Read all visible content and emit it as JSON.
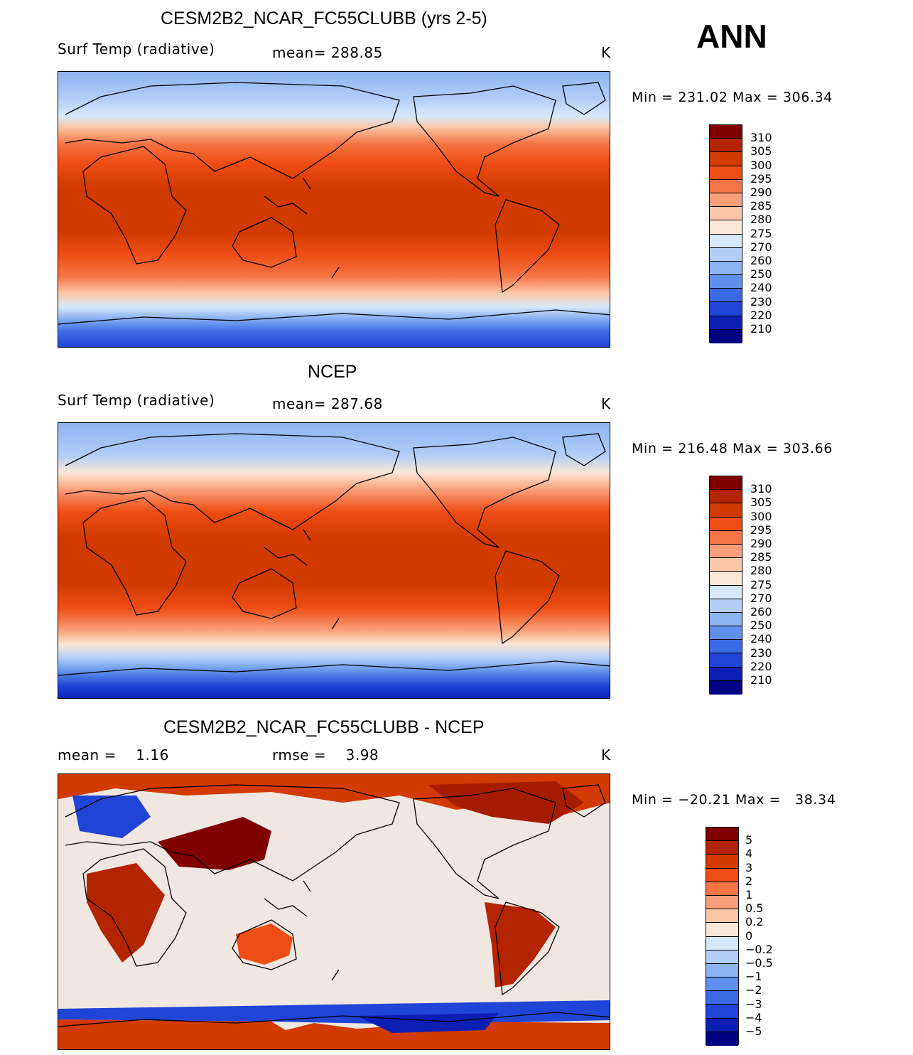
{
  "season_label": "ANN",
  "panels": [
    {
      "title": "CESM2B2_NCAR_FC55CLUBB (yrs 2-5)",
      "left_label": "Surf Temp (radiative)",
      "center_label": "mean= 288.85",
      "units": "K",
      "minmax": "Min = 231.02 Max = 306.34",
      "map_kind": "absolute"
    },
    {
      "title": "NCEP",
      "left_label": "Surf Temp (radiative)",
      "center_label": "mean= 287.68",
      "units": "K",
      "minmax": "Min = 216.48 Max = 303.66",
      "map_kind": "absolute"
    },
    {
      "title": "CESM2B2_NCAR_FC55CLUBB - NCEP",
      "left_label": "mean =    1.16",
      "center_label": "rmse =    3.98",
      "units": "K",
      "minmax": "Min = −20.21 Max =   38.34",
      "map_kind": "difference"
    }
  ],
  "colorbars": {
    "absolute": {
      "labels": [
        "310",
        "305",
        "300",
        "295",
        "290",
        "285",
        "280",
        "275",
        "270",
        "260",
        "250",
        "240",
        "230",
        "220",
        "210"
      ],
      "colors": [
        "#800000",
        "#b32400",
        "#d13a00",
        "#ee4d14",
        "#f57545",
        "#f9a07a",
        "#fcc7a8",
        "#fde7d6",
        "#d7e8fb",
        "#b3cff7",
        "#8cb3f2",
        "#5f90ec",
        "#3b6ae5",
        "#1f44d6",
        "#0d1fb3",
        "#000080"
      ]
    },
    "difference": {
      "labels": [
        "5",
        "4",
        "3",
        "2",
        "1",
        "0.5",
        "0.2",
        "0",
        "−0.2",
        "−0.5",
        "−1",
        "−2",
        "−3",
        "−4",
        "−5"
      ],
      "colors": [
        "#800000",
        "#b32400",
        "#d13a00",
        "#ee4d14",
        "#f57545",
        "#f9a07a",
        "#fcc7a8",
        "#fde7d6",
        "#d7e8fb",
        "#b3cff7",
        "#8cb3f2",
        "#5f90ec",
        "#3b6ae5",
        "#1f44d6",
        "#0d1fb3",
        "#000080"
      ]
    }
  }
}
